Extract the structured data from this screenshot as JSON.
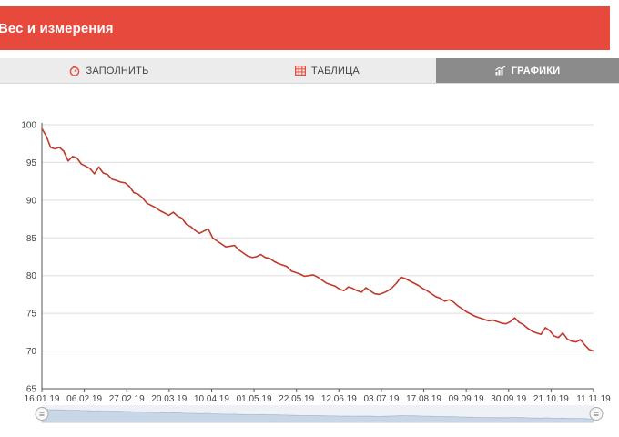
{
  "header": {
    "title": "Вес и измерения"
  },
  "tabs": [
    {
      "label": "ЗАПОЛНИТЬ",
      "icon": "scale-icon",
      "active": false
    },
    {
      "label": "ТАБЛИЦА",
      "icon": "table-icon",
      "active": false
    },
    {
      "label": "ГРАФИКИ",
      "icon": "chart-icon",
      "active": true
    }
  ],
  "colors": {
    "header": "#e8493d",
    "line": "#c0392b",
    "active_tab": "#8b8b8b"
  },
  "chart_data": {
    "type": "line",
    "ylim": [
      65,
      100
    ],
    "yticks": [
      65,
      70,
      75,
      80,
      85,
      90,
      95,
      100
    ],
    "xlabels": [
      "16.01.19",
      "06.02.19",
      "27.02.19",
      "20.03.19",
      "10.04.19",
      "01.05.19",
      "22.05.19",
      "12.06.19",
      "03.07.19",
      "17.08.19",
      "09.09.19",
      "30.09.19",
      "21.10.19",
      "11.11.19"
    ],
    "grid": "horizontal",
    "series": [
      {
        "values": [
          99.5,
          98.5,
          97.0,
          96.8,
          97.0,
          96.5,
          95.2,
          95.8,
          95.6,
          94.8,
          94.5,
          94.2,
          93.5,
          94.4,
          93.6,
          93.4,
          92.8,
          92.6,
          92.4,
          92.3,
          91.8,
          91.0,
          90.8,
          90.3,
          89.6,
          89.3,
          89.0,
          88.6,
          88.3,
          88.0,
          88.4,
          87.9,
          87.6,
          86.8,
          86.5,
          86.0,
          85.6,
          85.9,
          86.2,
          85.0,
          84.6,
          84.2,
          83.8,
          83.9,
          84.0,
          83.4,
          83.0,
          82.6,
          82.4,
          82.5,
          82.8,
          82.4,
          82.3,
          81.9,
          81.6,
          81.4,
          81.2,
          80.6,
          80.4,
          80.2,
          79.9,
          80.0,
          80.1,
          79.8,
          79.4,
          79.0,
          78.8,
          78.6,
          78.2,
          78.0,
          78.5,
          78.3,
          78.0,
          77.8,
          78.4,
          78.0,
          77.6,
          77.5,
          77.7,
          78.0,
          78.4,
          79.0,
          79.8,
          79.6,
          79.3,
          79.0,
          78.7,
          78.3,
          78.0,
          77.6,
          77.2,
          77.0,
          76.6,
          76.8,
          76.5,
          76.0,
          75.6,
          75.2,
          74.9,
          74.6,
          74.4,
          74.2,
          74.0,
          74.1,
          73.9,
          73.7,
          73.6,
          73.9,
          74.4,
          73.8,
          73.5,
          73.0,
          72.6,
          72.4,
          72.2,
          73.1,
          72.7,
          72.0,
          71.8,
          72.4,
          71.6,
          71.3,
          71.2,
          71.5,
          70.8,
          70.2,
          70.0
        ]
      }
    ]
  }
}
